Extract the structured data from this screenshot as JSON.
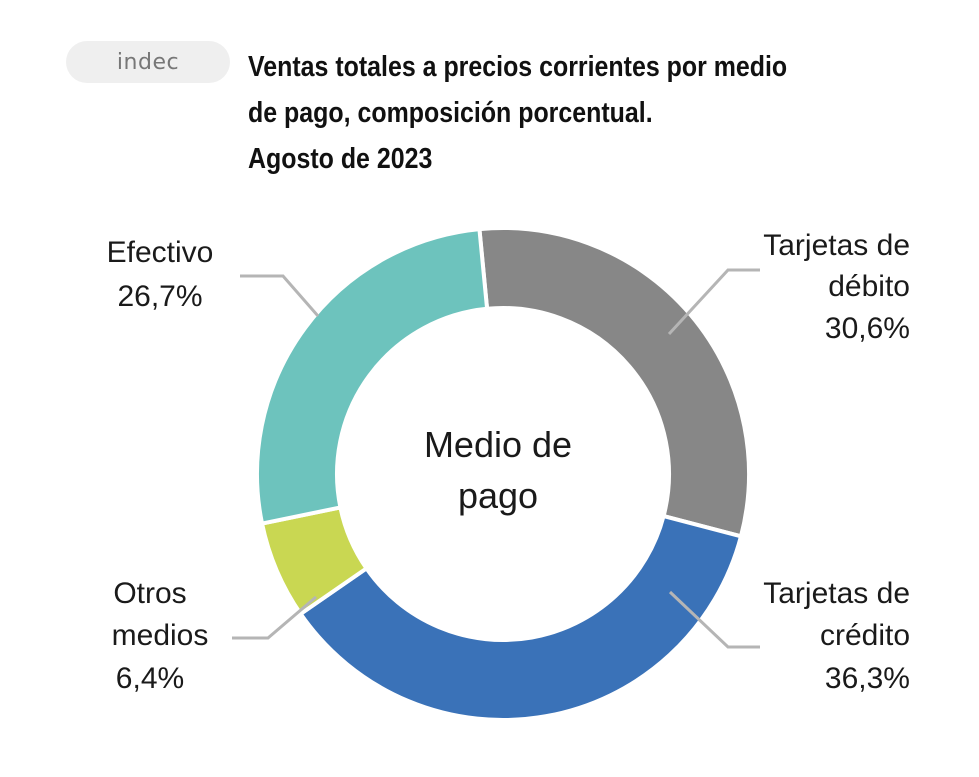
{
  "logo": {
    "text": "indec"
  },
  "title_lines": [
    "Ventas totales a precios corrientes por medio",
    "de pago, composición porcentual.",
    "Agosto de 2023"
  ],
  "chart_data": {
    "type": "pie",
    "variant": "donut",
    "center_label": [
      "Medio de",
      "pago"
    ],
    "unit": "%",
    "legend": "none",
    "series": [
      {
        "label_lines": [
          "Tarjetas de",
          "débito"
        ],
        "value": 30.6,
        "value_label": "30,6%",
        "color": "#878787"
      },
      {
        "label_lines": [
          "Tarjetas de",
          "crédito"
        ],
        "value": 36.3,
        "value_label": "36,3%",
        "color": "#3a72b8"
      },
      {
        "label_lines": [
          "Otros",
          "medios"
        ],
        "value": 6.4,
        "value_label": "6,4%",
        "color": "#c9d752"
      },
      {
        "label_lines": [
          "Efectivo"
        ],
        "value": 26.7,
        "value_label": "26,7%",
        "color": "#6dc3bd"
      }
    ]
  }
}
